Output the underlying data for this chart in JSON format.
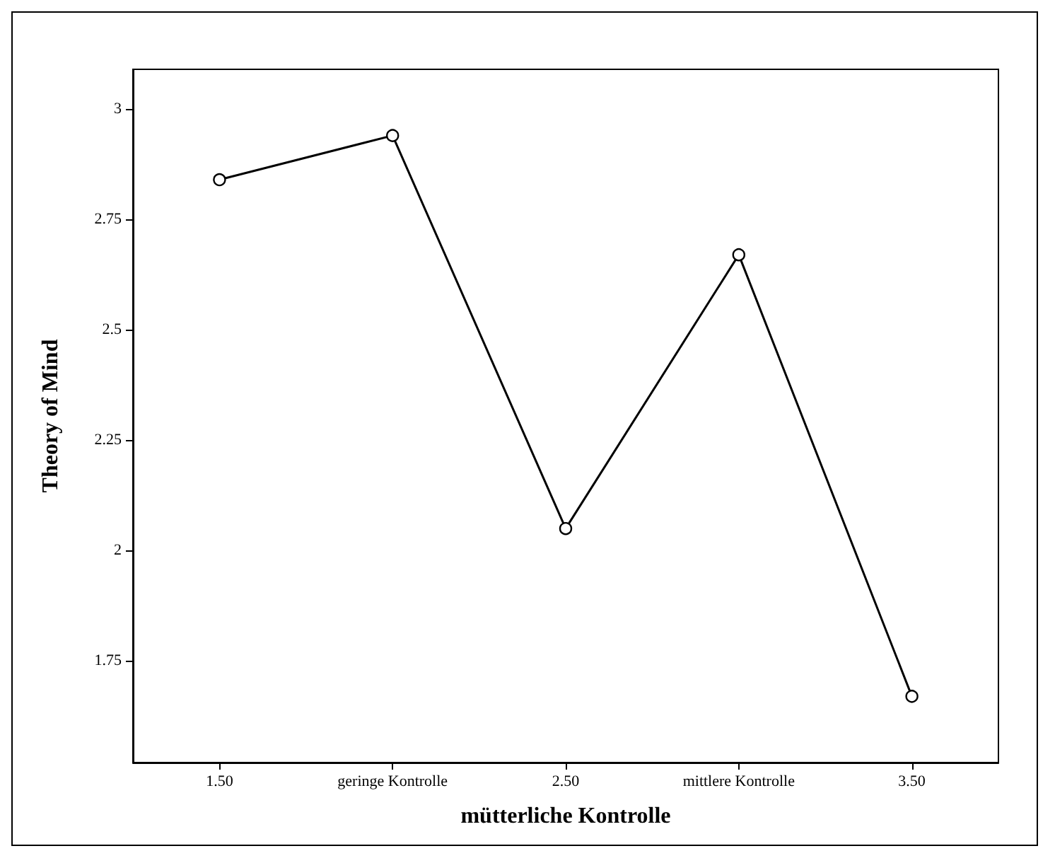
{
  "chart_data": {
    "type": "line",
    "xlabel": "mütterliche Kontrolle",
    "ylabel": "Theory of Mind",
    "categories": [
      "1.50",
      "geringe Kontrolle",
      "2.50",
      "mittlere Kontrolle",
      "3.50"
    ],
    "series": [
      {
        "color": "#000000",
        "values": [
          2.84,
          2.94,
          2.05,
          2.67,
          1.67
        ]
      }
    ],
    "ylim": [
      1.52,
      3.09
    ],
    "yticks": [
      1.75,
      2,
      2.25,
      2.5,
      2.75,
      3
    ],
    "grid": false,
    "marker": "circle",
    "line_style": "solid"
  }
}
